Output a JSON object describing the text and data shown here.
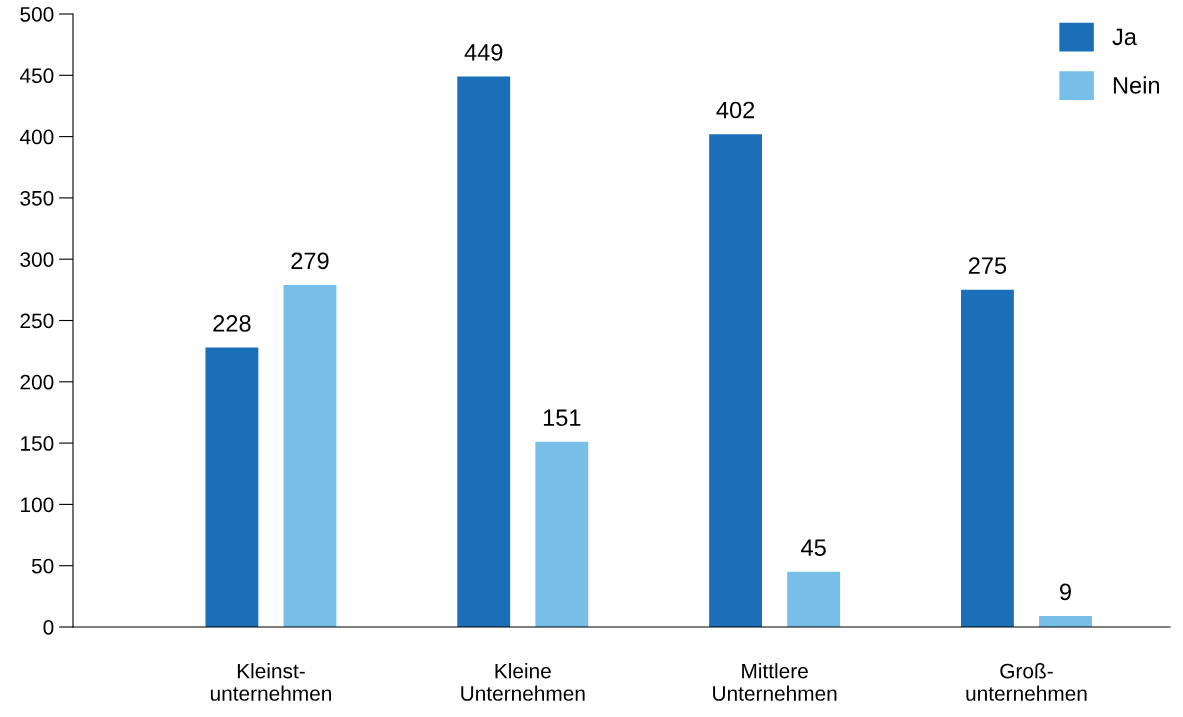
{
  "chart_data": {
    "type": "bar",
    "categories": [
      "Kleinst-\nunternehmen",
      "Kleine\nUnternehmen",
      "Mittlere\nUnternehmen",
      "Groß-\nunternehmen"
    ],
    "series": [
      {
        "name": "Ja",
        "color": "#1a6fb8",
        "values": [
          228,
          449,
          402,
          275
        ]
      },
      {
        "name": "Nein",
        "color": "#77bee9",
        "values": [
          279,
          151,
          45,
          9
        ]
      }
    ],
    "ylim": [
      0,
      500
    ],
    "yticks": [
      0,
      50,
      100,
      150,
      200,
      250,
      300,
      350,
      400,
      450,
      500
    ],
    "data_labels": true,
    "grid": false,
    "legend": "top right"
  }
}
